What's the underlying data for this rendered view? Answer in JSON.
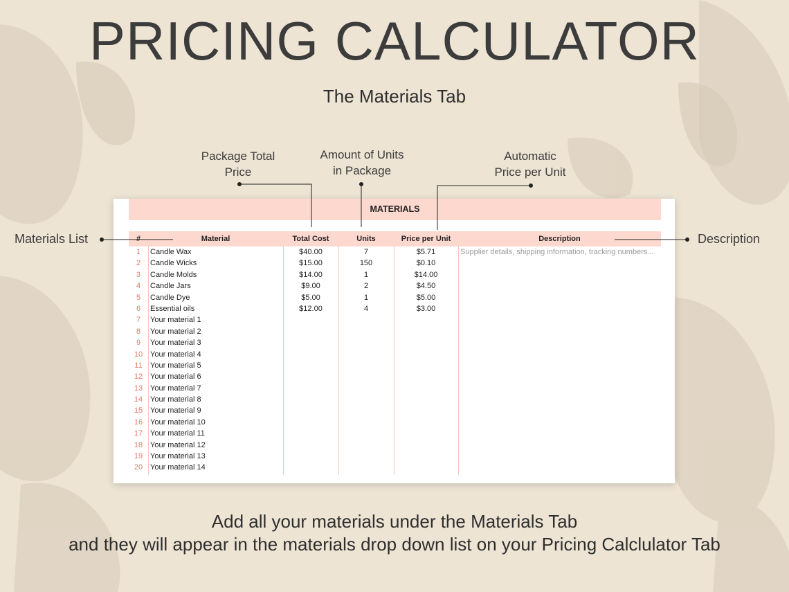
{
  "header": {
    "title": "PRICING CALCULATOR",
    "subtitle": "The Materials Tab"
  },
  "callouts": {
    "total_price": [
      "Package Total",
      "Price"
    ],
    "units": [
      "Amount of Units",
      "in Package"
    ],
    "price_per_unit": [
      "Automatic",
      "Price per Unit"
    ],
    "materials_list": "Materials List",
    "description": "Description"
  },
  "sheet": {
    "band_title": "MATERIALS",
    "columns": [
      "#",
      "Material",
      "Total Cost",
      "Units",
      "Price per Unit",
      "Description"
    ],
    "rows": [
      {
        "num": "1",
        "material": "Candle Wax",
        "cost": "$40.00",
        "units": "7",
        "ppu": "$5.71",
        "desc": "Supplier details, shipping information, tracking numbers..."
      },
      {
        "num": "2",
        "material": "Candle Wicks",
        "cost": "$15.00",
        "units": "150",
        "ppu": "$0.10",
        "desc": ""
      },
      {
        "num": "3",
        "material": "Candle Molds",
        "cost": "$14.00",
        "units": "1",
        "ppu": "$14.00",
        "desc": ""
      },
      {
        "num": "4",
        "material": "Candle Jars",
        "cost": "$9.00",
        "units": "2",
        "ppu": "$4.50",
        "desc": ""
      },
      {
        "num": "5",
        "material": "Candle Dye",
        "cost": "$5.00",
        "units": "1",
        "ppu": "$5.00",
        "desc": ""
      },
      {
        "num": "6",
        "material": "Essential oils",
        "cost": "$12.00",
        "units": "4",
        "ppu": "$3.00",
        "desc": ""
      },
      {
        "num": "7",
        "material": "Your material 1",
        "cost": "",
        "units": "",
        "ppu": "",
        "desc": ""
      },
      {
        "num": "8",
        "material": "Your material 2",
        "cost": "",
        "units": "",
        "ppu": "",
        "desc": ""
      },
      {
        "num": "9",
        "material": "Your material 3",
        "cost": "",
        "units": "",
        "ppu": "",
        "desc": ""
      },
      {
        "num": "10",
        "material": "Your material 4",
        "cost": "",
        "units": "",
        "ppu": "",
        "desc": ""
      },
      {
        "num": "11",
        "material": "Your material 5",
        "cost": "",
        "units": "",
        "ppu": "",
        "desc": ""
      },
      {
        "num": "12",
        "material": "Your material 6",
        "cost": "",
        "units": "",
        "ppu": "",
        "desc": ""
      },
      {
        "num": "13",
        "material": "Your material 7",
        "cost": "",
        "units": "",
        "ppu": "",
        "desc": ""
      },
      {
        "num": "14",
        "material": "Your material 8",
        "cost": "",
        "units": "",
        "ppu": "",
        "desc": ""
      },
      {
        "num": "15",
        "material": "Your material 9",
        "cost": "",
        "units": "",
        "ppu": "",
        "desc": ""
      },
      {
        "num": "16",
        "material": "Your material 10",
        "cost": "",
        "units": "",
        "ppu": "",
        "desc": ""
      },
      {
        "num": "17",
        "material": "Your material 11",
        "cost": "",
        "units": "",
        "ppu": "",
        "desc": ""
      },
      {
        "num": "18",
        "material": "Your material 12",
        "cost": "",
        "units": "",
        "ppu": "",
        "desc": ""
      },
      {
        "num": "19",
        "material": "Your material 13",
        "cost": "",
        "units": "",
        "ppu": "",
        "desc": ""
      },
      {
        "num": "20",
        "material": "Your material 14",
        "cost": "",
        "units": "",
        "ppu": "",
        "desc": ""
      }
    ]
  },
  "footer": {
    "line1": "Add all your materials under the Materials Tab",
    "line2": "and they will appear in the materials drop down list  on your Pricing Calclulator Tab"
  },
  "colors": {
    "background": "#ede4d4",
    "header_fill": "#fdd8cf",
    "row_number": "#e47a6c",
    "grid_line": "#f2c7be"
  }
}
